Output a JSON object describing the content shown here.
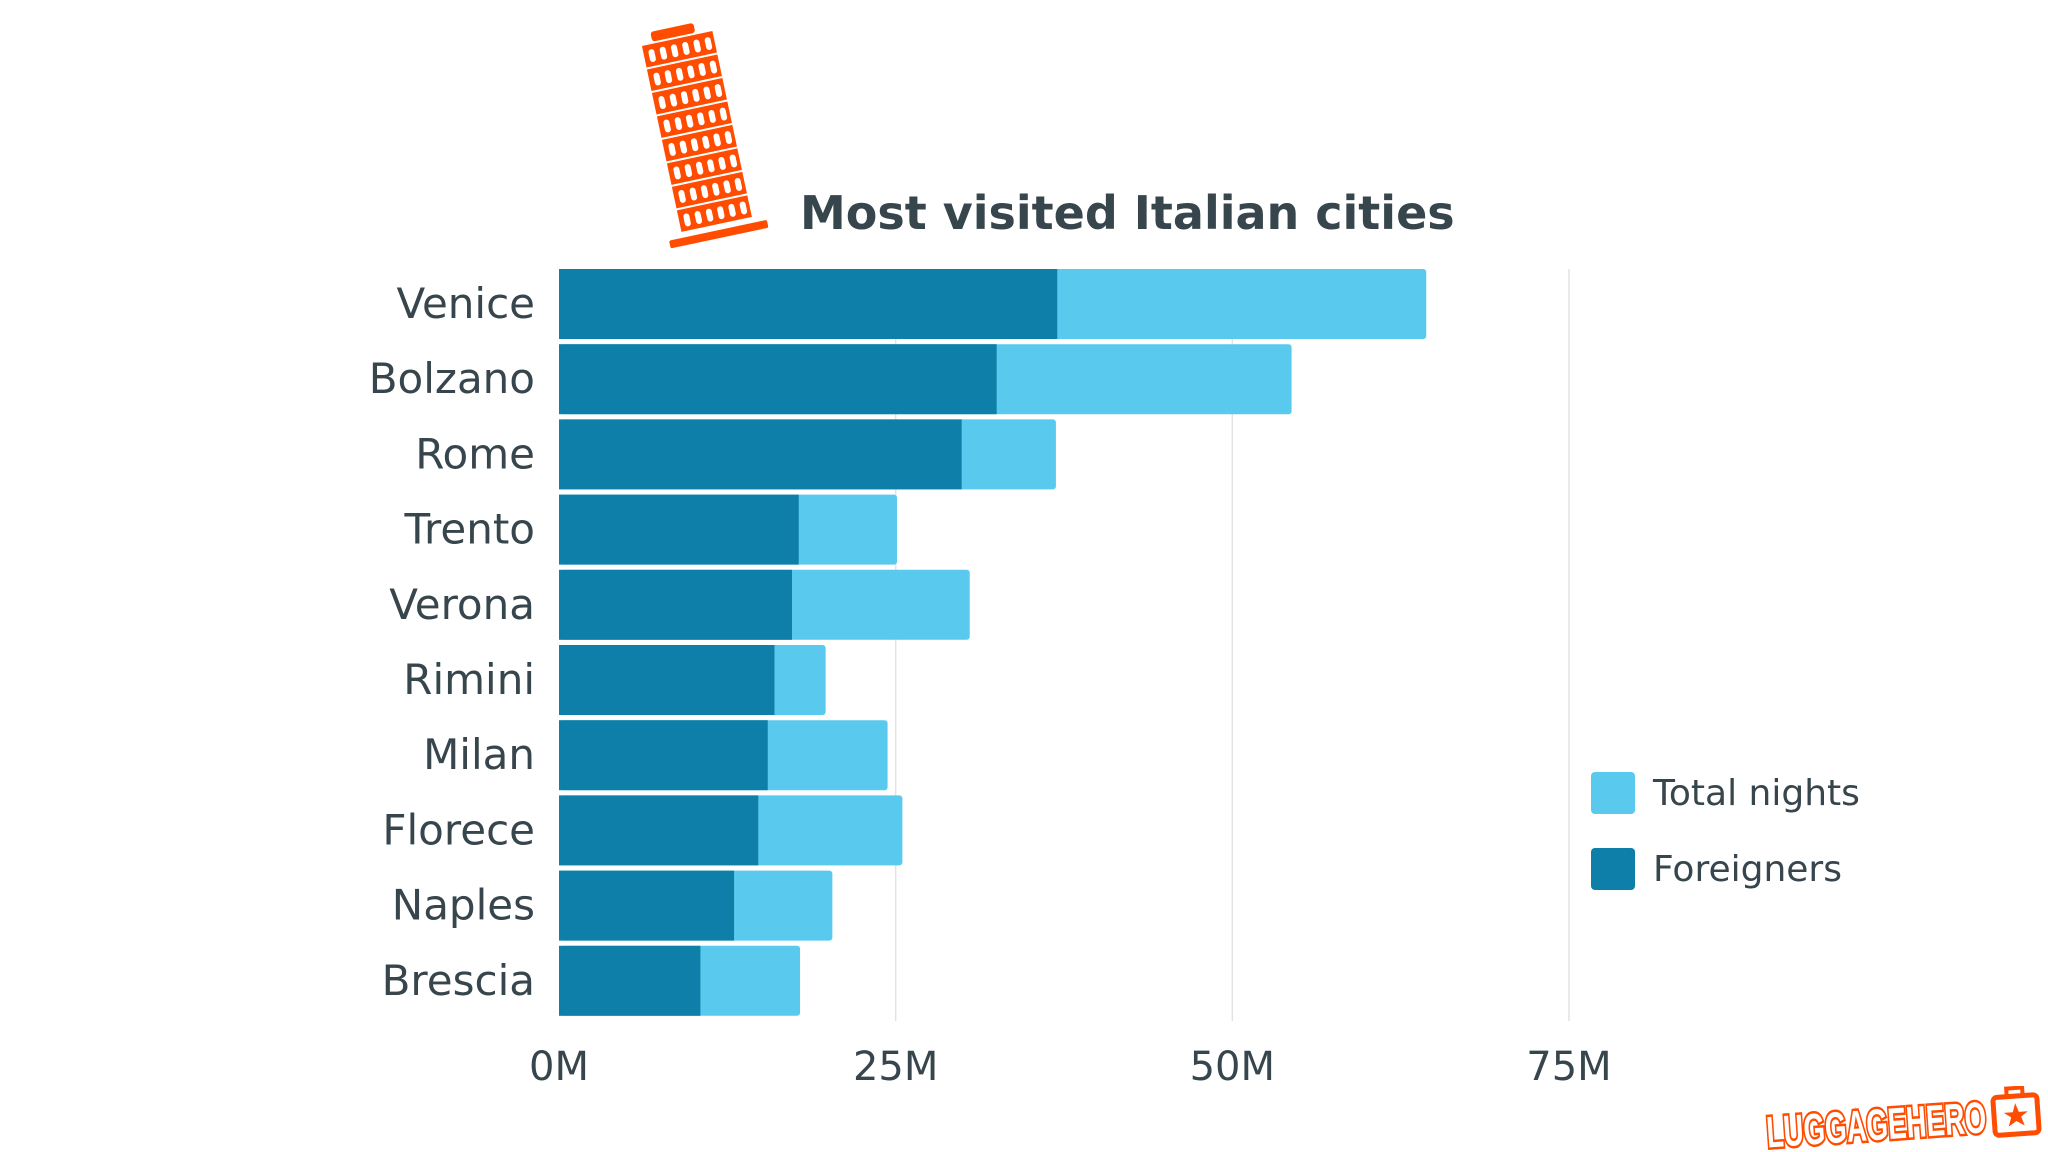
{
  "chart_data": {
    "type": "bar",
    "orientation": "horizontal",
    "stacked": "overlay",
    "title": "Most visited Italian cities",
    "categories": [
      "Venice",
      "Bolzano",
      "Rome",
      "Trento",
      "Verona",
      "Rimini",
      "Milan",
      "Florece",
      "Naples",
      "Brescia"
    ],
    "series": [
      {
        "name": "Total nights",
        "color": "#59c9ee",
        "values": [
          64.4,
          54.4,
          36.9,
          25.1,
          30.5,
          19.8,
          24.4,
          25.5,
          20.3,
          17.9
        ]
      },
      {
        "name": "Foreigners",
        "color": "#0e7fa8",
        "values": [
          37.0,
          32.5,
          29.9,
          17.8,
          17.3,
          16.0,
          15.5,
          14.8,
          13.0,
          10.5
        ]
      }
    ],
    "unit": "M",
    "xlim": [
      0,
      75
    ],
    "xticks": [
      "0M",
      "25M",
      "50M",
      "75M"
    ],
    "xtick_values": [
      0,
      25,
      50,
      75
    ],
    "grid": true,
    "legend_position": "right"
  },
  "brand": {
    "logo_text": "LUGGAGE HERO",
    "color": "#ff4c00"
  },
  "decoration": {
    "icon": "leaning-tower-of-pisa-icon",
    "color": "#ff4c00"
  }
}
